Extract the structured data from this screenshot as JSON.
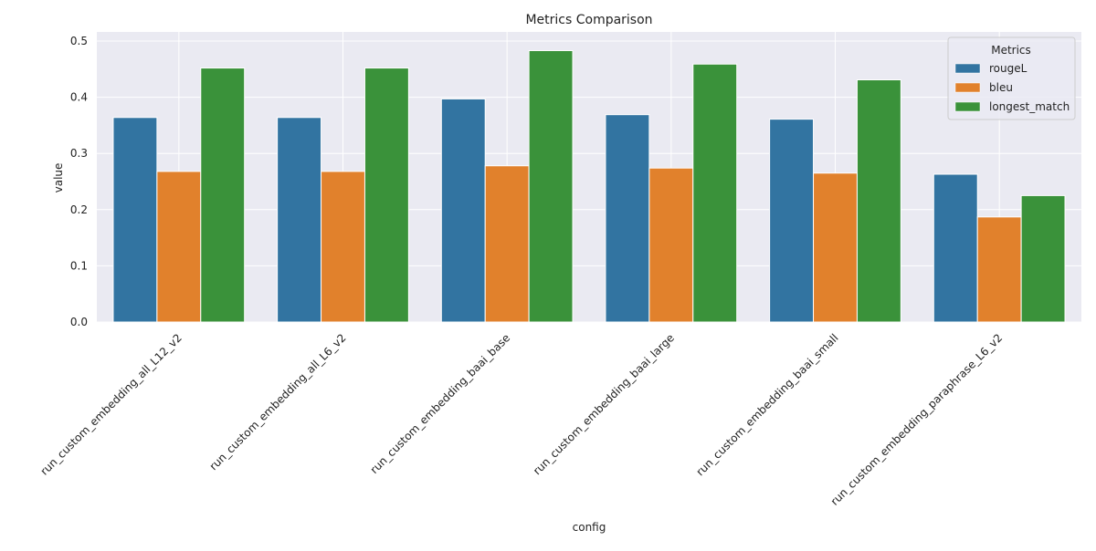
{
  "chart_data": {
    "type": "bar",
    "title": "Metrics Comparison",
    "xlabel": "config",
    "ylabel": "value",
    "ylim": [
      0,
      0.5
    ],
    "yticks": [
      "0.0",
      "0.1",
      "0.2",
      "0.3",
      "0.4",
      "0.5"
    ],
    "grid": true,
    "categories": [
      "run_custom_embedding_all_L12_v2",
      "run_custom_embedding_all_L6_v2",
      "run_custom_embedding_baai_base",
      "run_custom_embedding_baai_large",
      "run_custom_embedding_baai_small",
      "run_custom_embedding_paraphrase_L6_v2"
    ],
    "series": [
      {
        "name": "rougeL",
        "color": "#3274a1",
        "values": [
          0.364,
          0.364,
          0.397,
          0.369,
          0.361,
          0.263
        ]
      },
      {
        "name": "bleu",
        "color": "#e1812c",
        "values": [
          0.268,
          0.268,
          0.278,
          0.274,
          0.265,
          0.187
        ]
      },
      {
        "name": "longest_match",
        "color": "#3a923a",
        "values": [
          0.452,
          0.452,
          0.483,
          0.459,
          0.431,
          0.225
        ]
      }
    ],
    "legend": {
      "title": "Metrics",
      "placement": "top-right"
    }
  }
}
